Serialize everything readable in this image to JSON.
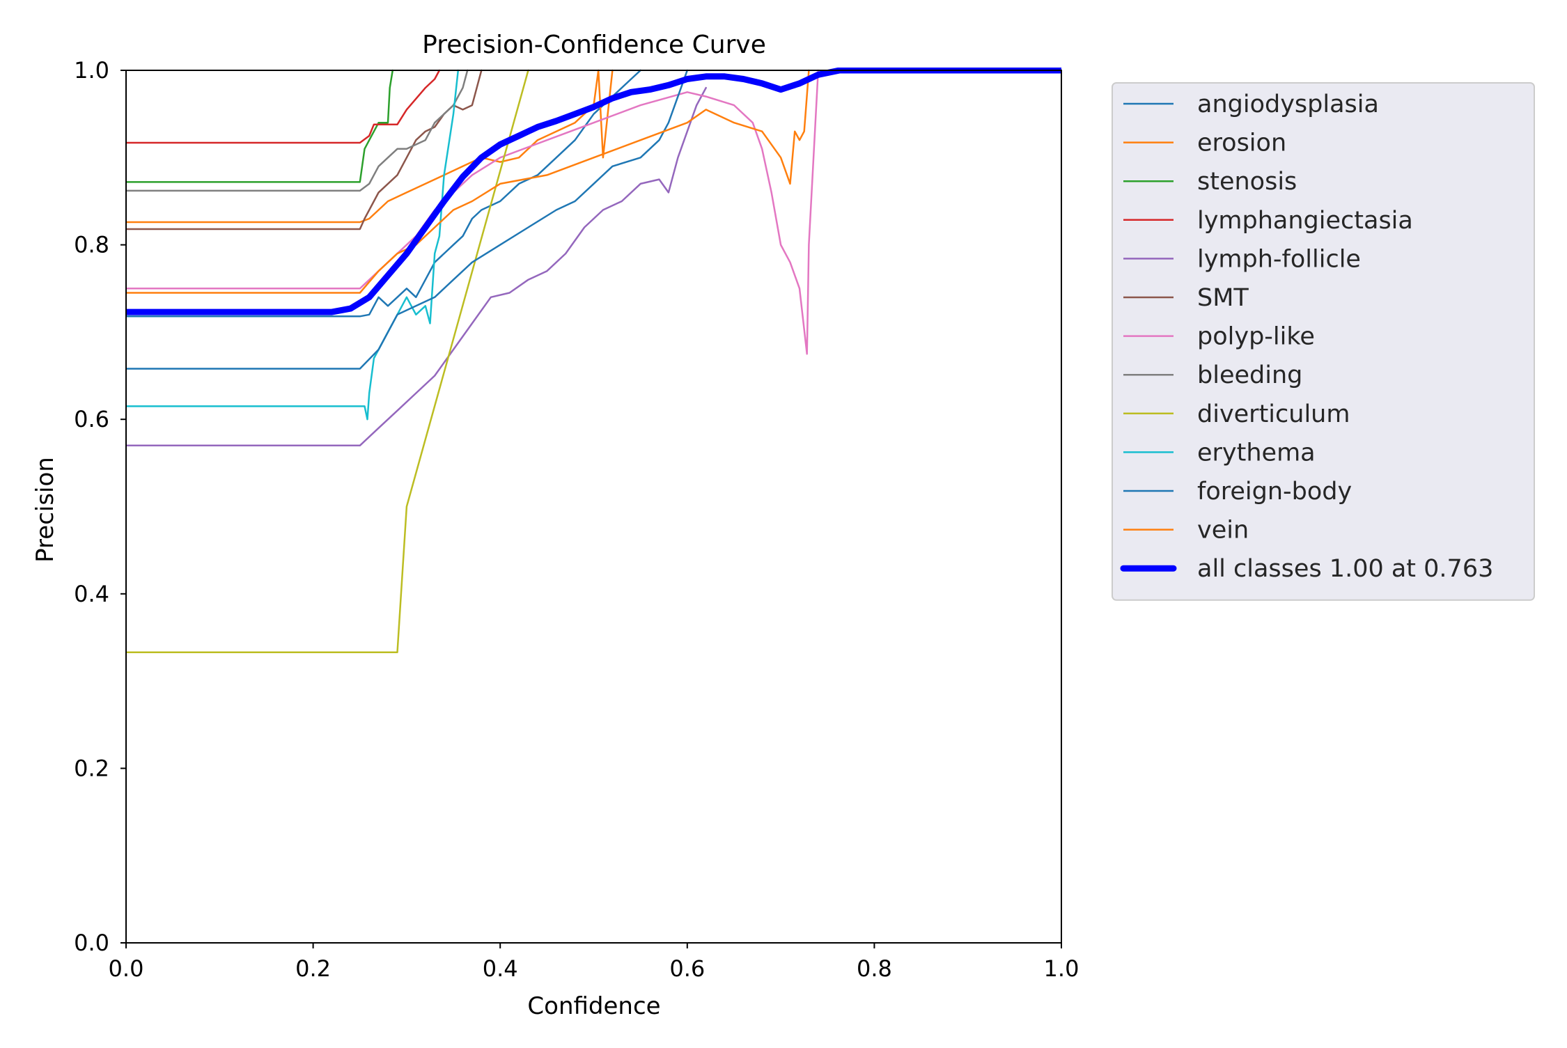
{
  "chart_data": {
    "type": "line",
    "title": "Precision-Confidence Curve",
    "xlabel": "Confidence",
    "ylabel": "Precision",
    "xlim": [
      0,
      1
    ],
    "ylim": [
      0,
      1
    ],
    "xticks": [
      "0.0",
      "0.2",
      "0.4",
      "0.6",
      "0.8",
      "1.0"
    ],
    "yticks": [
      "0.0",
      "0.2",
      "0.4",
      "0.6",
      "0.8",
      "1.0"
    ],
    "grid": false,
    "legend_position": "outside-right-top",
    "series": [
      {
        "name": "angiodysplasia",
        "color": "#1f77b4",
        "x": [
          0,
          0.25,
          0.26,
          0.27,
          0.28,
          0.29,
          0.3,
          0.31,
          0.32,
          0.33,
          0.34,
          0.35,
          0.36,
          0.37,
          0.38,
          0.4,
          0.42,
          0.44,
          0.46,
          0.48,
          0.5,
          0.52,
          0.54,
          0.55
        ],
        "y": [
          0.718,
          0.718,
          0.72,
          0.74,
          0.73,
          0.74,
          0.75,
          0.74,
          0.76,
          0.78,
          0.79,
          0.8,
          0.81,
          0.83,
          0.84,
          0.85,
          0.87,
          0.88,
          0.9,
          0.92,
          0.95,
          0.97,
          0.99,
          1.0
        ]
      },
      {
        "name": "erosion",
        "color": "#ff7f0e",
        "x": [
          0,
          0.25,
          0.26,
          0.27,
          0.28,
          0.3,
          0.32,
          0.34,
          0.36,
          0.38,
          0.4,
          0.42,
          0.44,
          0.46,
          0.48,
          0.5,
          0.505,
          0.51,
          0.52
        ],
        "y": [
          0.826,
          0.826,
          0.83,
          0.84,
          0.85,
          0.86,
          0.87,
          0.88,
          0.89,
          0.9,
          0.895,
          0.9,
          0.92,
          0.93,
          0.94,
          0.96,
          1.0,
          0.9,
          1.0
        ]
      },
      {
        "name": "stenosis",
        "color": "#2ca02c",
        "x": [
          0,
          0.25,
          0.255,
          0.26,
          0.265,
          0.27,
          0.28,
          0.282,
          0.285
        ],
        "y": [
          0.872,
          0.872,
          0.91,
          0.92,
          0.93,
          0.94,
          0.94,
          0.98,
          1.0
        ]
      },
      {
        "name": "lymphangiectasia",
        "color": "#d62728",
        "x": [
          0,
          0.25,
          0.26,
          0.265,
          0.29,
          0.3,
          0.32,
          0.33,
          0.335
        ],
        "y": [
          0.917,
          0.917,
          0.925,
          0.938,
          0.938,
          0.955,
          0.98,
          0.99,
          1.0
        ]
      },
      {
        "name": "lymph-follicle",
        "color": "#9467bd",
        "x": [
          0,
          0.25,
          0.27,
          0.29,
          0.31,
          0.33,
          0.35,
          0.37,
          0.39,
          0.41,
          0.43,
          0.45,
          0.47,
          0.49,
          0.51,
          0.53,
          0.55,
          0.57,
          0.58,
          0.59,
          0.6,
          0.61,
          0.62
        ],
        "y": [
          0.57,
          0.57,
          0.59,
          0.61,
          0.63,
          0.65,
          0.68,
          0.71,
          0.74,
          0.745,
          0.76,
          0.77,
          0.79,
          0.82,
          0.84,
          0.85,
          0.87,
          0.875,
          0.86,
          0.9,
          0.93,
          0.96,
          0.98
        ]
      },
      {
        "name": "SMT",
        "color": "#8c564b",
        "x": [
          0,
          0.25,
          0.255,
          0.26,
          0.27,
          0.29,
          0.3,
          0.31,
          0.32,
          0.33,
          0.34,
          0.35,
          0.36,
          0.37,
          0.375,
          0.38
        ],
        "y": [
          0.818,
          0.818,
          0.83,
          0.84,
          0.86,
          0.88,
          0.9,
          0.92,
          0.93,
          0.935,
          0.95,
          0.96,
          0.955,
          0.96,
          0.98,
          1.0
        ]
      },
      {
        "name": "polyp-like",
        "color": "#e377c2",
        "x": [
          0,
          0.25,
          0.27,
          0.29,
          0.31,
          0.33,
          0.35,
          0.37,
          0.4,
          0.45,
          0.5,
          0.55,
          0.6,
          0.62,
          0.65,
          0.67,
          0.68,
          0.69,
          0.7,
          0.71,
          0.72,
          0.728,
          0.73,
          0.74
        ],
        "y": [
          0.75,
          0.75,
          0.77,
          0.79,
          0.81,
          0.84,
          0.86,
          0.88,
          0.9,
          0.92,
          0.94,
          0.96,
          0.975,
          0.97,
          0.96,
          0.94,
          0.91,
          0.86,
          0.8,
          0.78,
          0.75,
          0.675,
          0.8,
          1.0
        ]
      },
      {
        "name": "bleeding",
        "color": "#7f7f7f",
        "x": [
          0,
          0.25,
          0.26,
          0.27,
          0.28,
          0.29,
          0.3,
          0.32,
          0.33,
          0.34,
          0.35,
          0.36,
          0.365
        ],
        "y": [
          0.862,
          0.862,
          0.87,
          0.89,
          0.9,
          0.91,
          0.91,
          0.92,
          0.94,
          0.95,
          0.96,
          0.98,
          1.0
        ]
      },
      {
        "name": "diverticulum",
        "color": "#bcbd22",
        "x": [
          0,
          0.29,
          0.3,
          0.43
        ],
        "y": [
          0.333,
          0.333,
          0.5,
          1.0
        ]
      },
      {
        "name": "erythema",
        "color": "#17becf",
        "x": [
          0,
          0.255,
          0.258,
          0.26,
          0.265,
          0.27,
          0.28,
          0.29,
          0.3,
          0.31,
          0.32,
          0.325,
          0.33,
          0.335,
          0.34,
          0.35,
          0.355
        ],
        "y": [
          0.615,
          0.615,
          0.6,
          0.63,
          0.67,
          0.68,
          0.7,
          0.72,
          0.74,
          0.72,
          0.73,
          0.71,
          0.79,
          0.81,
          0.88,
          0.95,
          1.0
        ]
      },
      {
        "name": "foreign-body",
        "color": "#1f77b4",
        "x": [
          0,
          0.25,
          0.27,
          0.29,
          0.31,
          0.33,
          0.35,
          0.37,
          0.4,
          0.43,
          0.46,
          0.48,
          0.5,
          0.52,
          0.55,
          0.57,
          0.58,
          0.59,
          0.6
        ],
        "y": [
          0.658,
          0.658,
          0.68,
          0.72,
          0.73,
          0.74,
          0.76,
          0.78,
          0.8,
          0.82,
          0.84,
          0.85,
          0.87,
          0.89,
          0.9,
          0.92,
          0.94,
          0.97,
          1.0
        ]
      },
      {
        "name": "vein",
        "color": "#ff7f0e",
        "x": [
          0,
          0.25,
          0.27,
          0.29,
          0.31,
          0.33,
          0.35,
          0.37,
          0.4,
          0.45,
          0.5,
          0.55,
          0.6,
          0.62,
          0.65,
          0.68,
          0.7,
          0.71,
          0.715,
          0.72,
          0.725,
          0.73
        ],
        "y": [
          0.745,
          0.745,
          0.77,
          0.79,
          0.8,
          0.82,
          0.84,
          0.85,
          0.87,
          0.88,
          0.9,
          0.92,
          0.94,
          0.955,
          0.94,
          0.93,
          0.9,
          0.87,
          0.93,
          0.92,
          0.93,
          1.0
        ]
      },
      {
        "name": "all classes 1.00 at 0.763",
        "color": "#0000ff",
        "bold": true,
        "x": [
          0,
          0.22,
          0.24,
          0.26,
          0.28,
          0.3,
          0.32,
          0.34,
          0.36,
          0.38,
          0.4,
          0.42,
          0.44,
          0.46,
          0.48,
          0.5,
          0.52,
          0.54,
          0.56,
          0.58,
          0.6,
          0.62,
          0.64,
          0.66,
          0.68,
          0.7,
          0.72,
          0.74,
          0.763,
          1.0
        ],
        "y": [
          0.723,
          0.723,
          0.727,
          0.74,
          0.765,
          0.79,
          0.82,
          0.85,
          0.878,
          0.9,
          0.915,
          0.925,
          0.935,
          0.942,
          0.95,
          0.958,
          0.968,
          0.975,
          0.978,
          0.983,
          0.99,
          0.993,
          0.993,
          0.99,
          0.985,
          0.978,
          0.985,
          0.995,
          1.0,
          1.0
        ]
      }
    ]
  }
}
